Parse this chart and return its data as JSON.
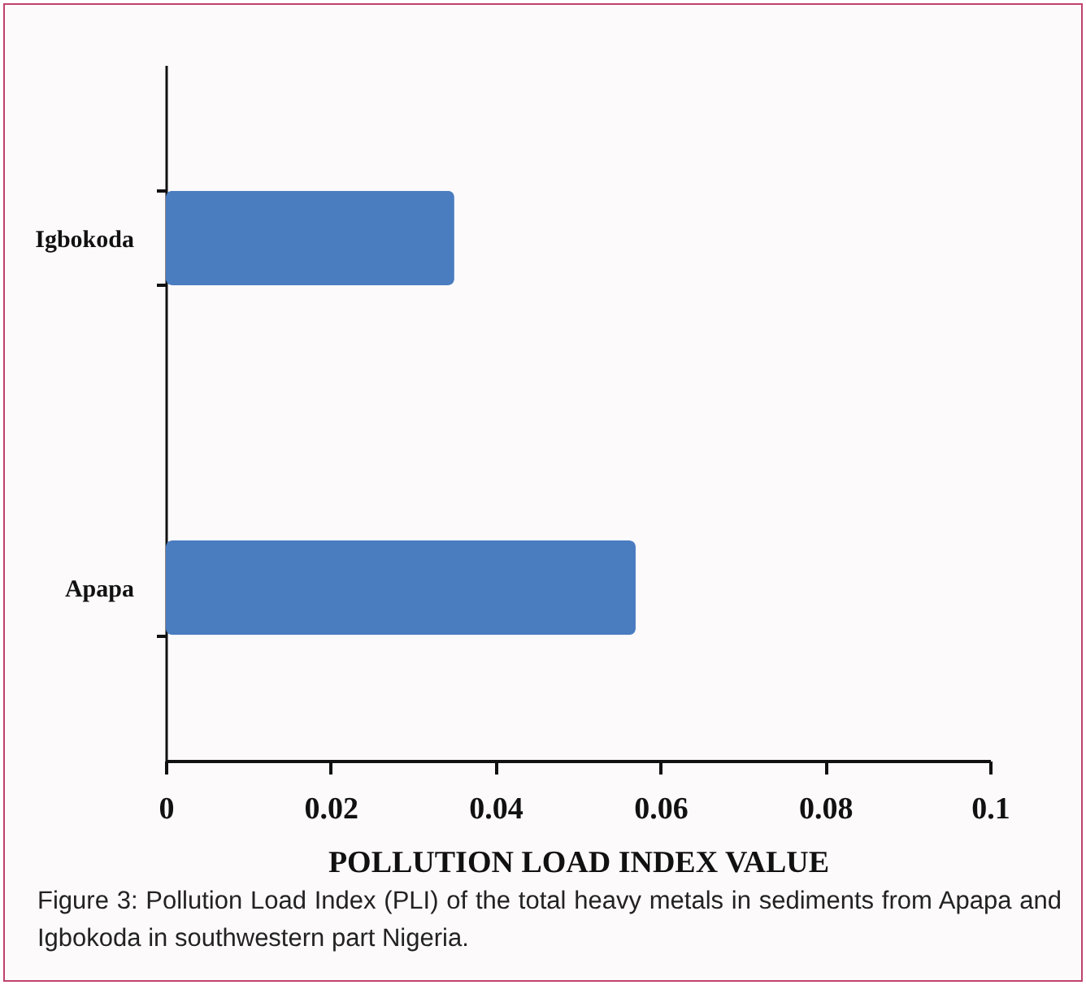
{
  "chart_data": {
    "type": "bar",
    "orientation": "horizontal",
    "categories": [
      "Igbokoda",
      "Apapa"
    ],
    "values": [
      0.035,
      0.057
    ],
    "color": "#4a7cc0",
    "xlim": [
      0,
      0.1
    ],
    "xticks": [
      0,
      0.02,
      0.04,
      0.06,
      0.08,
      {
        "value": 0.1,
        "label": "0.1"
      }
    ],
    "xlabel": "POLLUTION LOAD INDEX VALUE",
    "grid": false,
    "annotations": [
      "Figure 3: Pollution Load Index (PLI) of the total heavy metals in sediments from Apapa and Igbokoda in southwestern part Nigeria."
    ]
  }
}
